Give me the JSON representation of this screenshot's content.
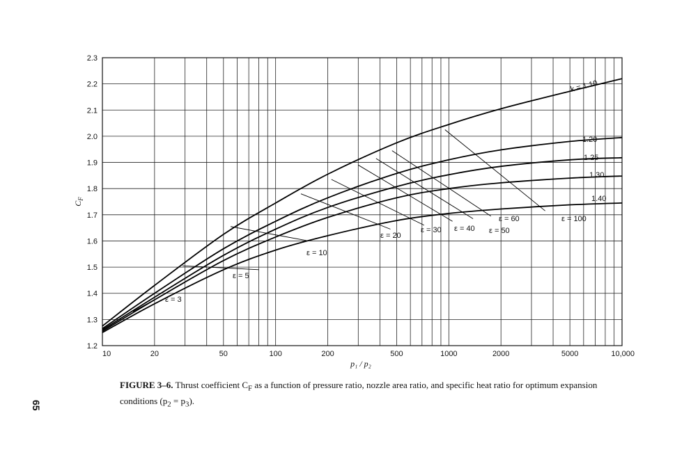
{
  "page_number": "65",
  "caption": {
    "label": "FIGURE 3–6.",
    "text": "Thrust coefficient C",
    "sub": "F",
    "text2": " as a function of pressure ratio, nozzle area ratio, and specific heat ratio for optimum expansion conditions (p",
    "sub2": "2",
    "mid": " = p",
    "sub3": "3",
    "end": ")."
  },
  "chart_data": {
    "type": "line",
    "xscale": "log",
    "xlim": [
      10,
      10000
    ],
    "ylim": [
      1.2,
      2.3
    ],
    "ylabel": "C",
    "ylabel_sub": "F",
    "xlabel": "p₁ / p₂",
    "grid": true,
    "x_ticks": [
      10,
      20,
      50,
      100,
      200,
      500,
      1000,
      2000,
      5000,
      10000
    ],
    "x_tick_labels": [
      "10",
      "20",
      "50",
      "100",
      "200",
      "500",
      "1000",
      "2000",
      "5000",
      "10,000"
    ],
    "x_gridlines": [
      10,
      20,
      30,
      40,
      50,
      60,
      70,
      80,
      90,
      100,
      200,
      300,
      400,
      500,
      600,
      700,
      800,
      900,
      1000,
      2000,
      3000,
      4000,
      5000,
      6000,
      7000,
      8000,
      9000,
      10000
    ],
    "y_ticks": [
      1.2,
      1.3,
      1.4,
      1.5,
      1.6,
      1.7,
      1.8,
      1.9,
      2.0,
      2.1,
      2.2,
      2.3
    ],
    "y_tick_labels": [
      "1.2",
      "1.3",
      "1.4",
      "1.5",
      "1.6",
      "1.7",
      "1.8",
      "1.9",
      "2.0",
      "2.1",
      "2.2",
      "2.3"
    ],
    "series": [
      {
        "name": "k = 1.10",
        "label": "k = 1.10",
        "x": [
          10,
          20,
          50,
          100,
          200,
          500,
          1000,
          2000,
          5000,
          10000
        ],
        "y": [
          1.275,
          1.43,
          1.625,
          1.745,
          1.855,
          1.975,
          2.045,
          2.105,
          2.172,
          2.22
        ]
      },
      {
        "name": "1.20",
        "label": "1.20",
        "x": [
          10,
          20,
          50,
          100,
          200,
          500,
          1000,
          2000,
          5000,
          10000
        ],
        "y": [
          1.265,
          1.4,
          1.57,
          1.675,
          1.765,
          1.858,
          1.91,
          1.948,
          1.98,
          1.995
        ]
      },
      {
        "name": "1.25",
        "label": "1.25",
        "x": [
          10,
          20,
          50,
          100,
          200,
          500,
          1000,
          2000,
          5000,
          10000
        ],
        "y": [
          1.26,
          1.385,
          1.545,
          1.645,
          1.728,
          1.808,
          1.853,
          1.885,
          1.91,
          1.918
        ]
      },
      {
        "name": "1.30",
        "label": "1.30",
        "x": [
          10,
          20,
          50,
          100,
          200,
          500,
          1000,
          2000,
          5000,
          10000
        ],
        "y": [
          1.255,
          1.375,
          1.525,
          1.615,
          1.69,
          1.765,
          1.8,
          1.822,
          1.84,
          1.848
        ]
      },
      {
        "name": "1.40",
        "label": "1.40",
        "x": [
          10,
          20,
          50,
          100,
          200,
          500,
          1000,
          2000,
          5000,
          10000
        ],
        "y": [
          1.25,
          1.36,
          1.49,
          1.565,
          1.62,
          1.678,
          1.705,
          1.722,
          1.738,
          1.745
        ]
      }
    ],
    "area_ratio_lines": [
      {
        "label": "ε = 3",
        "x": [
          15,
          24
        ],
        "y": [
          1.33,
          1.405
        ]
      },
      {
        "label": "ε = 5",
        "x": [
          29,
          80
        ],
        "y": [
          1.505,
          1.49
        ]
      },
      {
        "label": "ε = 10",
        "x": [
          55,
          155
        ],
        "y": [
          1.655,
          1.6
        ]
      },
      {
        "label": "ε = 20",
        "x": [
          140,
          460
        ],
        "y": [
          1.78,
          1.645
        ]
      },
      {
        "label": "ε = 30",
        "x": [
          210,
          720
        ],
        "y": [
          1.835,
          1.66
        ]
      },
      {
        "label": "ε = 40",
        "x": [
          300,
          1050
        ],
        "y": [
          1.89,
          1.675
        ]
      },
      {
        "label": "ε = 50",
        "x": [
          380,
          1380
        ],
        "y": [
          1.915,
          1.685
        ]
      },
      {
        "label": "ε = 60",
        "x": [
          470,
          1750
        ],
        "y": [
          1.945,
          1.695
        ]
      },
      {
        "label": "ε = 100",
        "x": [
          950,
          3600
        ],
        "y": [
          2.025,
          1.715
        ]
      }
    ]
  }
}
